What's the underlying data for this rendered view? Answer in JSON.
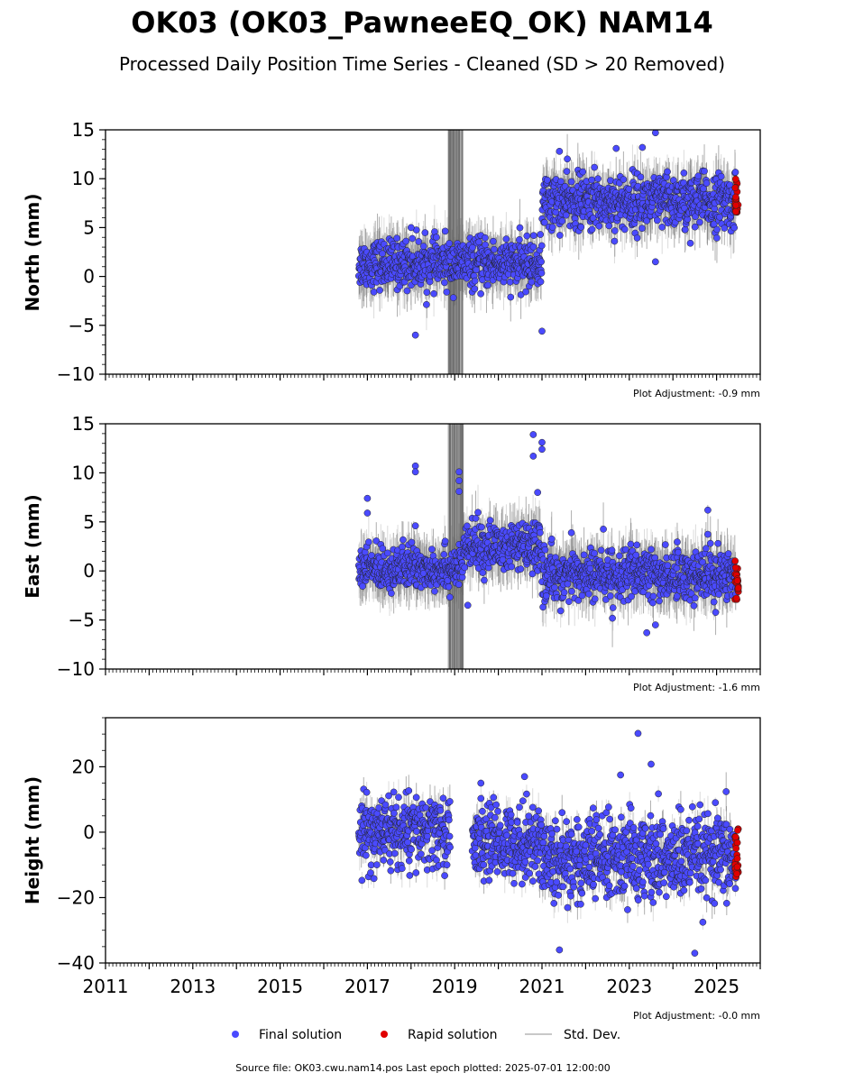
{
  "title": "OK03 (OK03_PawneeEQ_OK) NAM14",
  "subtitle": "Processed Daily Position Time Series - Cleaned (SD > 20 Removed)",
  "source_text": "Source file: OK03.cwu.nam14.pos  Last epoch plotted: 2025-07-01 12:00:00",
  "legend": {
    "final": "Final solution",
    "rapid": "Rapid solution",
    "std": "Std. Dev."
  },
  "colors": {
    "final": "#4a4aff",
    "rapid": "#e00000",
    "std": "#9a9a9a",
    "marker_edge": "#222222"
  },
  "x_axis": {
    "range": [
      2011,
      2026
    ],
    "tick_labels": [
      "2011",
      "2013",
      "2015",
      "2017",
      "2019",
      "2021",
      "2023",
      "2025"
    ]
  },
  "chart_data": [
    {
      "type": "scatter",
      "ylabel": "North (mm)",
      "ylim": [
        -10,
        15
      ],
      "yticks": [
        "15",
        "10",
        "5",
        "0",
        "−5",
        "−10"
      ],
      "adjustment": "Plot Adjustment: -0.9 mm",
      "data_span": [
        2016.8,
        2025.5
      ],
      "segments": [
        {
          "x0": 2016.8,
          "x1": 2021.0,
          "mean": 1.3,
          "sd": 1.2
        },
        {
          "x0": 2021.0,
          "x1": 2025.45,
          "mean": 7.6,
          "sd": 1.4
        }
      ],
      "outliers": [
        [
          2018.1,
          -6.0
        ],
        [
          2021.0,
          -5.6
        ],
        [
          2023.6,
          14.7
        ],
        [
          2021.4,
          12.8
        ],
        [
          2023.3,
          13.2
        ],
        [
          2018.0,
          5.0
        ],
        [
          2022.7,
          13.1
        ],
        [
          2023.6,
          1.5
        ],
        [
          2024.4,
          3.4
        ]
      ],
      "rapid": {
        "x0": 2025.42,
        "x1": 2025.5,
        "min": 6.5,
        "max": 10.0
      }
    },
    {
      "type": "scatter",
      "ylabel": "East (mm)",
      "ylim": [
        -10,
        15
      ],
      "yticks": [
        "15",
        "10",
        "5",
        "0",
        "−5",
        "−10"
      ],
      "adjustment": "Plot Adjustment: -1.6 mm",
      "data_span": [
        2016.8,
        2025.5
      ],
      "segments": [
        {
          "x0": 2016.8,
          "x1": 2019.2,
          "mean": 0.3,
          "sd": 1.1
        },
        {
          "x0": 2019.2,
          "x1": 2021.0,
          "mean": 2.4,
          "sd": 1.2
        },
        {
          "x0": 2021.0,
          "x1": 2025.45,
          "mean": -0.4,
          "sd": 1.3
        }
      ],
      "outliers": [
        [
          2017.0,
          7.4
        ],
        [
          2017.0,
          5.9
        ],
        [
          2018.1,
          10.7
        ],
        [
          2018.1,
          10.1
        ],
        [
          2018.1,
          4.6
        ],
        [
          2019.1,
          10.1
        ],
        [
          2019.1,
          9.2
        ],
        [
          2019.1,
          8.1
        ],
        [
          2020.8,
          13.9
        ],
        [
          2020.8,
          11.7
        ],
        [
          2021.0,
          13.1
        ],
        [
          2021.0,
          12.4
        ],
        [
          2020.9,
          8.0
        ],
        [
          2024.8,
          6.2
        ],
        [
          2023.4,
          -6.3
        ],
        [
          2023.6,
          -5.5
        ],
        [
          2019.3,
          -3.5
        ]
      ],
      "rapid": {
        "x0": 2025.42,
        "x1": 2025.5,
        "min": -3.0,
        "max": 1.5
      }
    },
    {
      "type": "scatter",
      "ylabel": "Height (mm)",
      "ylim": [
        -40,
        35
      ],
      "yticks": [
        "20",
        "0",
        "−20",
        "−40"
      ],
      "adjustment": "Plot Adjustment: -0.0 mm",
      "data_span": [
        2016.8,
        2025.5
      ],
      "segments": [
        {
          "x0": 2016.8,
          "x1": 2018.9,
          "mean": 0.0,
          "sd": 5.5
        },
        {
          "x0": 2019.4,
          "x1": 2021.0,
          "mean": -3.0,
          "sd": 5.5
        },
        {
          "x0": 2021.0,
          "x1": 2025.45,
          "mean": -8.0,
          "sd": 6.5
        }
      ],
      "outliers": [
        [
          2023.2,
          30.2
        ],
        [
          2023.5,
          20.8
        ],
        [
          2024.5,
          -37.0
        ],
        [
          2021.4,
          -36.0
        ],
        [
          2022.8,
          17.5
        ],
        [
          2020.6,
          17.0
        ],
        [
          2019.6,
          15.0
        ]
      ],
      "rapid": {
        "x0": 2025.42,
        "x1": 2025.5,
        "min": -15.0,
        "max": 1.5
      }
    }
  ]
}
